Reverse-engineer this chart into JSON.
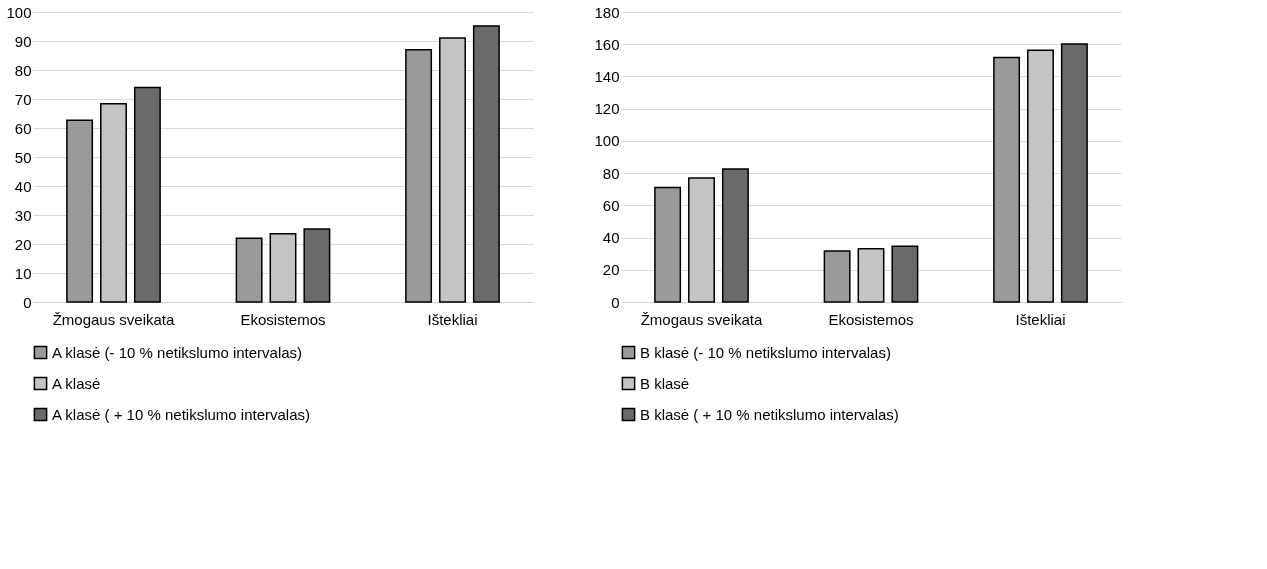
{
  "chart_data": [
    {
      "type": "bar",
      "categories": [
        "Žmogaus sveikata",
        "Ekosistemos",
        "Ištekliai"
      ],
      "series": [
        {
          "name": "A klasė (- 10 % netikslumo intervalas)",
          "color": "#9a9a9a",
          "values": [
            62.7,
            22,
            87
          ]
        },
        {
          "name": "A klasė",
          "color": "#c4c4c4",
          "values": [
            68.4,
            23.5,
            91
          ]
        },
        {
          "name": "A klasė ( + 10 % netikslumo intervalas)",
          "color": "#6a6a6a",
          "values": [
            74,
            25.2,
            95.2
          ]
        }
      ],
      "ylim": [
        0,
        100
      ],
      "yticks": [
        0,
        10,
        20,
        30,
        40,
        50,
        60,
        70,
        80,
        90,
        100
      ],
      "grid": "y",
      "legend": "bottom"
    },
    {
      "type": "bar",
      "categories": [
        "Žmogaus sveikata",
        "Ekosistemos",
        "Ištekliai"
      ],
      "series": [
        {
          "name": "B klasė (- 10 % netikslumo intervalas)",
          "color": "#9a9a9a",
          "values": [
            71,
            31.7,
            151.7
          ]
        },
        {
          "name": "B klasė",
          "color": "#c4c4c4",
          "values": [
            77,
            33,
            156.2
          ]
        },
        {
          "name": "B klasė ( + 10 % netikslumo intervalas)",
          "color": "#6a6a6a",
          "values": [
            82.5,
            34.6,
            160.2
          ]
        }
      ],
      "ylim": [
        0,
        180
      ],
      "yticks": [
        0,
        20,
        40,
        60,
        80,
        100,
        120,
        140,
        160,
        180
      ],
      "grid": "y",
      "legend": "bottom"
    }
  ]
}
